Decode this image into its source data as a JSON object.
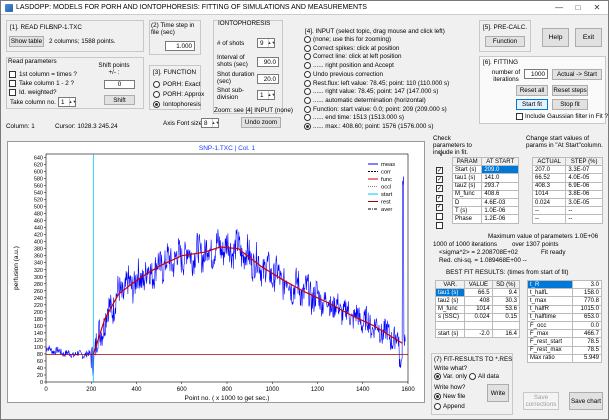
{
  "window": {
    "title": "LASDOPP: MODELS FOR PORH AND IONTOPHORESIS: FITTING OF SIMULATIONS AND MEASUREMENTS"
  },
  "read_file": {
    "header": "[1]. READ FILE",
    "file_name": "SNP-1.TXC",
    "show_table_label": "Show table",
    "info": "2 columns; 1588 points.",
    "params_header": "Read parameters",
    "first_col_times": "1st column = times ?",
    "take_col_1_2": "Take column 1 - 2 ?",
    "id_weighted": "Id. weighted?",
    "take_col_no_label": "Take column no.",
    "take_col_no_value": "1",
    "shift_label": "Shift points +/- :",
    "shift_value": "0",
    "shift_button": "Shift",
    "column_status": "Column:  1",
    "cursor_status": "Cursor: 1028.3     245.24"
  },
  "time_step": {
    "header": "(2) Time step in file (sec)",
    "value": "1.000"
  },
  "function": {
    "header": "[3]. FUNCTION",
    "options": [
      "PORH: Exact",
      "PORH: Approx",
      "Iontophoresis"
    ],
    "selected": 2,
    "axis_font_label": "Axis Font size",
    "axis_font_value": "8"
  },
  "iontophoresis": {
    "header": "IONTOPHORESIS",
    "shots_label": "# of shots",
    "shots_value": "9",
    "interval_label": "Interval of shots (sec)",
    "interval_value": "90.0",
    "duration_label": "Shot duration (sec)",
    "duration_value": "20.0",
    "subdiv_label": "Shot sub-division",
    "subdiv_value": "1",
    "zoom_note": "Zoom: see [4] INPUT (none)",
    "undo_zoom": "Undo zoom"
  },
  "input": {
    "header": "[4]. INPUT (select topic, drag mouse and click left)",
    "options": [
      "(none; use this for zooming)",
      "Correct spikes: click at position",
      "Correct line: click at left position",
      "......     right position and Accept",
      "Undo previous correction",
      "Rest.flux: left  value:    78.45;  point:   110  (110.000 s)",
      "......        right value:    78.45;  point:   147  (147.000 s)",
      "......          automatic determination (horizontal)",
      "Function: start value:     0.0;  point:   209  (209.000 s)",
      "......        end time:   1513  (1513.000 s)",
      "......          max.:    408.60;  point:   1576  (1576.000 s)"
    ],
    "selected": 10
  },
  "precalc": {
    "header": "[5]. PRE-CALC.",
    "function_button": "Function"
  },
  "help_button": "Help",
  "exit_button": "Exit",
  "fitting": {
    "header": "[6]. FITTING",
    "iterations_label": "number of iterations",
    "iterations_value": "1000",
    "actual_start": "Actual -> Start",
    "reset_all": "Reset all",
    "reset_steps": "Reset steps",
    "start_fit": "Start fit",
    "stop_fit": "Stop fit",
    "include_gaussian": "Include Gaussian filter in Fit ?"
  },
  "params": {
    "check_note": "Check parameters to include in fit.",
    "change_note": "Change start values of params in \"At Start\"column.",
    "arrow": "V",
    "headers": [
      "PARAM",
      "AT START",
      "ACTUAL",
      "STEP (%)"
    ],
    "rows": [
      {
        "checked": true,
        "param": "Start (s)",
        "start": "209.0",
        "actual": "207.0",
        "step": "3.3E-07"
      },
      {
        "checked": true,
        "param": "tau1 (s)",
        "start": "141.0",
        "actual": "66.52",
        "step": "4.0E-05"
      },
      {
        "checked": true,
        "param": "tau2 (s)",
        "start": "293.7",
        "actual": "408.3",
        "step": "6.9E-06"
      },
      {
        "checked": true,
        "param": "M_func",
        "start": "408.6",
        "actual": "1014",
        "step": "3.8E-06"
      },
      {
        "checked": true,
        "param": "D",
        "start": "4.6E-03",
        "actual": "0.024",
        "step": "3.0E-05"
      },
      {
        "checked": false,
        "param": "T (s)",
        "start": "1.0E-06",
        "actual": "--",
        "step": "--"
      },
      {
        "checked": false,
        "param": "Phase",
        "start": "1.2E-06",
        "actual": "--",
        "step": "--"
      }
    ]
  },
  "fit_status": {
    "max_param": "Maximum value of parameters 1.0E+06",
    "iterations": "1000 of 1000 iterations",
    "over_points": "over 1307 points",
    "sigma": "<sigma^2> = 2.208708E+02",
    "fit_ready": "Fit ready",
    "chi": "Red. chi-sq. = 1.089468E+00  --"
  },
  "best_fit": {
    "header": "BEST FIT RESULTS:   (times from start of fit)",
    "headers": [
      "VAR.",
      "VALUE",
      "SD (%)"
    ],
    "rows": [
      [
        "tau1 (s)",
        "66.5",
        "9.4"
      ],
      [
        "tau2 (s)",
        "408",
        "30.3"
      ],
      [
        "M_func",
        "1014",
        "53.6"
      ],
      [
        "s (SSC)",
        "0.024",
        "0.15"
      ],
      [
        "",
        "",
        ""
      ],
      [
        "start (s)",
        "-2.0",
        "16.4"
      ]
    ],
    "side_rows": [
      [
        "t_R",
        "3.0"
      ],
      [
        "t_halfL",
        "158.0"
      ],
      [
        "t_max",
        "770.8"
      ],
      [
        "t_halfR",
        "1015.0"
      ],
      [
        "t_halftime",
        "653.0"
      ],
      [
        "F_occ",
        "0.0"
      ],
      [
        "F_max",
        "466.7"
      ],
      [
        "F_rest_start",
        "78.5"
      ],
      [
        "F_rest_max",
        "78.5"
      ],
      [
        "Max ratio",
        "5.949"
      ]
    ]
  },
  "fit_results": {
    "header": "(7)  FIT-RESULTS TO *.RES",
    "write_what": "Write what?",
    "var_only": "Var. only",
    "all_data": "All data",
    "write_how": "Write how?",
    "new_file": "New file",
    "append": "Append",
    "write_button": "Write",
    "save_corrections": "Save corrections",
    "save_chart": "Save chart"
  },
  "chart_data": {
    "type": "line",
    "title": "SNP-1.TXC | Col. 1",
    "xlabel": "Point no. ( x 1000 to get sec.)",
    "ylabel": "perfusion (a.u.)",
    "xlim": [
      0,
      1600
    ],
    "ylim": [
      0,
      650
    ],
    "x_ticks": [
      "0",
      "200",
      "400",
      "600",
      "800",
      "1000",
      "1200",
      "1400",
      "1600"
    ],
    "y_ticks": [
      "0",
      "20",
      "40",
      "60",
      "80",
      "100",
      "120",
      "140",
      "160",
      "180",
      "200",
      "220",
      "240",
      "260",
      "280",
      "300",
      "320",
      "340",
      "360",
      "380",
      "400",
      "420",
      "440",
      "460",
      "480",
      "500",
      "520",
      "540",
      "560",
      "580",
      "600",
      "620",
      "640"
    ],
    "legend": [
      "meas",
      "corr",
      "func",
      "occl",
      "start",
      "rest",
      "aver"
    ],
    "colors": {
      "meas": "#0000ff",
      "func": "#cc0000",
      "rest": "#a00000",
      "aver": "#000000",
      "start": "#00c0ff"
    },
    "start_x": 209,
    "rest_y": 78.5,
    "baseline": [
      [
        0,
        95
      ],
      [
        100,
        80
      ],
      [
        200,
        78
      ]
    ],
    "fit": [
      [
        209,
        78
      ],
      [
        260,
        180
      ],
      [
        320,
        250
      ],
      [
        400,
        290
      ],
      [
        500,
        330
      ],
      [
        600,
        360
      ],
      [
        700,
        370
      ],
      [
        770,
        385
      ],
      [
        850,
        380
      ],
      [
        950,
        330
      ],
      [
        1050,
        290
      ],
      [
        1150,
        255
      ],
      [
        1250,
        225
      ],
      [
        1350,
        190
      ],
      [
        1450,
        160
      ],
      [
        1500,
        140
      ],
      [
        1550,
        120
      ],
      [
        1576,
        110
      ]
    ]
  }
}
